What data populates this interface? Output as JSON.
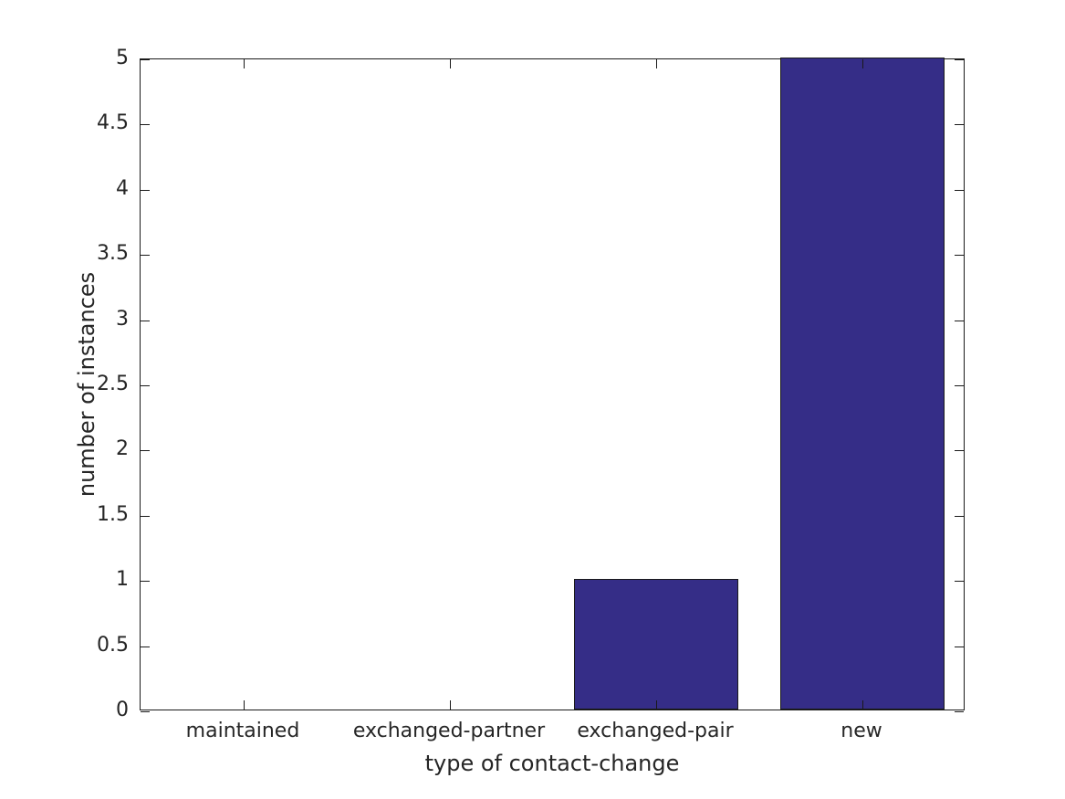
{
  "chart_data": {
    "type": "bar",
    "title": "",
    "categories": [
      "maintained",
      "exchanged-partner",
      "exchanged-pair",
      "new"
    ],
    "values": [
      0,
      0,
      1,
      5
    ],
    "xlabel": "type of contact-change",
    "ylabel": "number of instances",
    "ylim": [
      0,
      5
    ],
    "ytick_step": 0.5,
    "yticks": [
      0,
      0.5,
      1,
      1.5,
      2,
      2.5,
      3,
      3.5,
      4,
      4.5,
      5
    ],
    "ytick_labels": [
      "0",
      "0.5",
      "1",
      "1.5",
      "2",
      "2.5",
      "3",
      "3.5",
      "4",
      "4.5",
      "5"
    ],
    "grid": false,
    "legend": null,
    "box": true,
    "tick_direction": "in",
    "bar_width_fraction": 0.8,
    "colors": {
      "bar_fill": "#352d87",
      "bar_border": "#1a1a1a",
      "axis": "#1a1a1a",
      "text": "#262626",
      "background": "#ffffff"
    }
  }
}
